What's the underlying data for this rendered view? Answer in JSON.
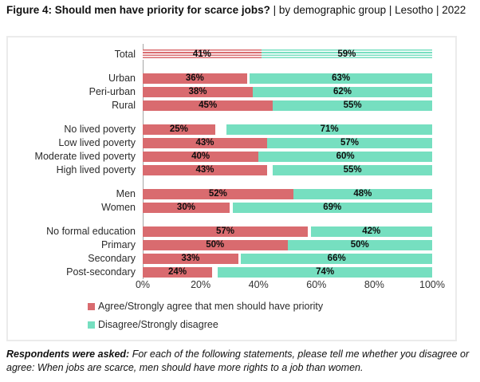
{
  "title": {
    "bold": "Figure 4: Should men have priority for scarce jobs?",
    "regular": " | by demographic group | Lesotho | 2022"
  },
  "footnote": {
    "bold": "Respondents were asked:",
    "regular": " For each of the following statements, please tell me whether you disagree or agree: When jobs are scarce, men should have more rights to a job than women."
  },
  "legend": {
    "items": [
      {
        "label": "Agree/Strongly agree that men should have priority",
        "color": "#d96b6f"
      },
      {
        "label": "Disagree/Strongly disagree",
        "color": "#76dfc0"
      }
    ]
  },
  "colors": {
    "agree": "#d96b6f",
    "disagree": "#76dfc0",
    "axis_line": "#a6a6a6",
    "box_border": "#ebebeb",
    "label_text": "#0e0e0e"
  },
  "chart_data": {
    "type": "bar",
    "orientation": "horizontal",
    "stacked": true,
    "unit": "%",
    "xlim": [
      0,
      100
    ],
    "x_ticks": [
      "0%",
      "20%",
      "40%",
      "60%",
      "80%",
      "100%"
    ],
    "x_tick_values": [
      0,
      20,
      40,
      60,
      80,
      100
    ],
    "categories": [
      "Total",
      "Urban",
      "Peri-urban",
      "Rural",
      "No lived poverty",
      "Low lived poverty",
      "Moderate lived poverty",
      "High lived poverty",
      "Men",
      "Women",
      "No formal education",
      "Primary",
      "Secondary",
      "Post-secondary"
    ],
    "group_sizes": [
      1,
      3,
      4,
      2,
      4
    ],
    "hatched_categories": [
      "Total"
    ],
    "series": [
      {
        "name": "Agree/Strongly agree that men should have priority",
        "color": "#d96b6f",
        "values": [
          41,
          36,
          38,
          45,
          25,
          43,
          40,
          43,
          52,
          30,
          57,
          50,
          33,
          24
        ]
      },
      {
        "name": "Disagree/Strongly disagree",
        "color": "#76dfc0",
        "align": "right",
        "values": [
          59,
          63,
          62,
          55,
          71,
          57,
          60,
          55,
          48,
          69,
          42,
          50,
          66,
          74
        ]
      }
    ],
    "grid": false,
    "legend_position": "bottom-left"
  }
}
